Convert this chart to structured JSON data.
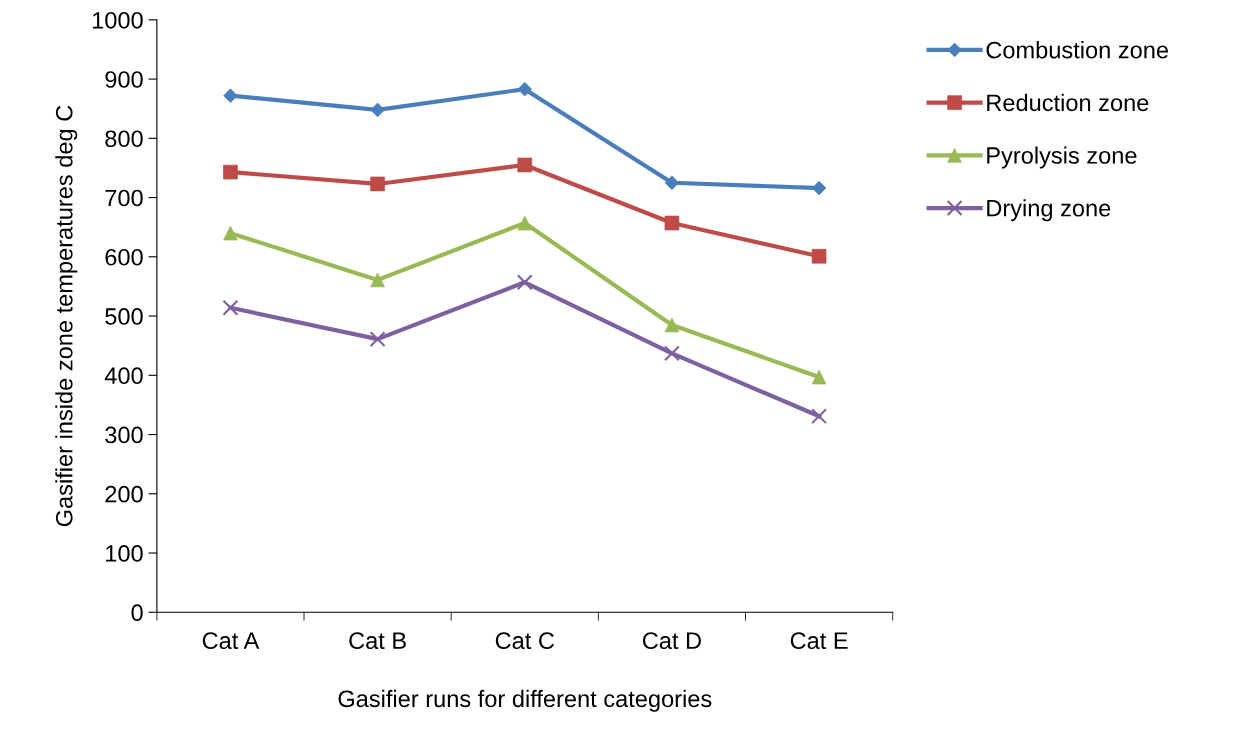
{
  "chart_data": {
    "type": "line",
    "xlabel": "Gasifier runs for different categories",
    "ylabel": "Gasifier inside zone temperatures deg C",
    "categories": [
      "Cat A",
      "Cat B",
      "Cat C",
      "Cat D",
      "Cat E"
    ],
    "series": [
      {
        "name": "Combustion zone",
        "color": "#4a7ebb",
        "marker": "diamond",
        "values": [
          872,
          848,
          883,
          725,
          716
        ]
      },
      {
        "name": "Reduction zone",
        "color": "#be4b48",
        "marker": "square",
        "values": [
          743,
          723,
          755,
          657,
          601
        ]
      },
      {
        "name": "Pyrolysis zone",
        "color": "#98b954",
        "marker": "triangle",
        "values": [
          640,
          561,
          657,
          485,
          397
        ]
      },
      {
        "name": "Drying zone",
        "color": "#7d60a0",
        "marker": "cross",
        "values": [
          514,
          461,
          557,
          437,
          331
        ]
      }
    ],
    "ylim": [
      0,
      1000
    ],
    "yticks": [
      0,
      100,
      200,
      300,
      400,
      500,
      600,
      700,
      800,
      900,
      1000
    ],
    "grid": false,
    "legend": "right",
    "line_style": "solid"
  }
}
